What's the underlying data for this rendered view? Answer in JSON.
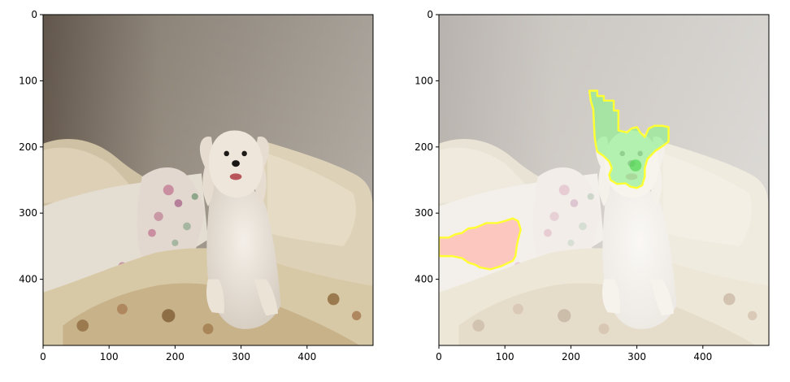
{
  "chart_data": [
    {
      "type": "image",
      "panel": "original",
      "title": "",
      "xlabel": "",
      "ylabel": "",
      "xlim": [
        0,
        500
      ],
      "ylim": [
        500,
        0
      ],
      "y_inverted": true,
      "xticks": [
        0,
        100,
        200,
        300,
        400
      ],
      "yticks": [
        0,
        100,
        200,
        300,
        400
      ],
      "grid": false,
      "image_content": "white fluffy dog sitting on cream bedding with floral pillow"
    },
    {
      "type": "image",
      "panel": "explanation-overlay",
      "title": "",
      "xlabel": "",
      "ylabel": "",
      "xlim": [
        0,
        500
      ],
      "ylim": [
        500,
        0
      ],
      "y_inverted": true,
      "xticks": [
        0,
        100,
        200,
        300,
        400
      ],
      "yticks": [
        0,
        100,
        200,
        300,
        400
      ],
      "grid": false,
      "image_content": "faded dog photo with highlighted superpixel regions",
      "regions": [
        {
          "color": "#8ef08e",
          "outline": "#ffff33",
          "points": [
            [
              228,
              115
            ],
            [
              240,
              115
            ],
            [
              240,
              123
            ],
            [
              250,
              123
            ],
            [
              250,
              130
            ],
            [
              265,
              130
            ],
            [
              265,
              145
            ],
            [
              272,
              145
            ],
            [
              272,
              175
            ],
            [
              285,
              178
            ],
            [
              292,
              172
            ],
            [
              300,
              170
            ],
            [
              305,
              178
            ],
            [
              312,
              185
            ],
            [
              318,
              172
            ],
            [
              327,
              168
            ],
            [
              338,
              168
            ],
            [
              348,
              170
            ],
            [
              348,
              192
            ],
            [
              340,
              198
            ],
            [
              328,
              206
            ],
            [
              316,
              218
            ],
            [
              312,
              232
            ],
            [
              312,
              245
            ],
            [
              308,
              258
            ],
            [
              300,
              262
            ],
            [
              290,
              260
            ],
            [
              283,
              255
            ],
            [
              270,
              256
            ],
            [
              260,
              250
            ],
            [
              258,
              242
            ],
            [
              262,
              232
            ],
            [
              258,
              222
            ],
            [
              250,
              214
            ],
            [
              240,
              207
            ],
            [
              238,
              198
            ],
            [
              236,
              185
            ],
            [
              235,
              165
            ],
            [
              234,
              143
            ],
            [
              230,
              130
            ]
          ]
        },
        {
          "color": "#ffb0a8",
          "outline": "#ffff33",
          "points": [
            [
              0,
              337
            ],
            [
              15,
              337
            ],
            [
              25,
              332
            ],
            [
              35,
              330
            ],
            [
              45,
              323
            ],
            [
              55,
              322
            ],
            [
              65,
              318
            ],
            [
              72,
              315
            ],
            [
              88,
              315
            ],
            [
              100,
              312
            ],
            [
              112,
              308
            ],
            [
              120,
              312
            ],
            [
              124,
              325
            ],
            [
              120,
              340
            ],
            [
              118,
              350
            ],
            [
              116,
              365
            ],
            [
              112,
              372
            ],
            [
              95,
              380
            ],
            [
              78,
              385
            ],
            [
              62,
              382
            ],
            [
              55,
              378
            ],
            [
              45,
              375
            ],
            [
              35,
              368
            ],
            [
              20,
              365
            ],
            [
              0,
              365
            ]
          ]
        }
      ]
    }
  ],
  "colors": {
    "axis": "#000000",
    "background": "#ffffff"
  }
}
